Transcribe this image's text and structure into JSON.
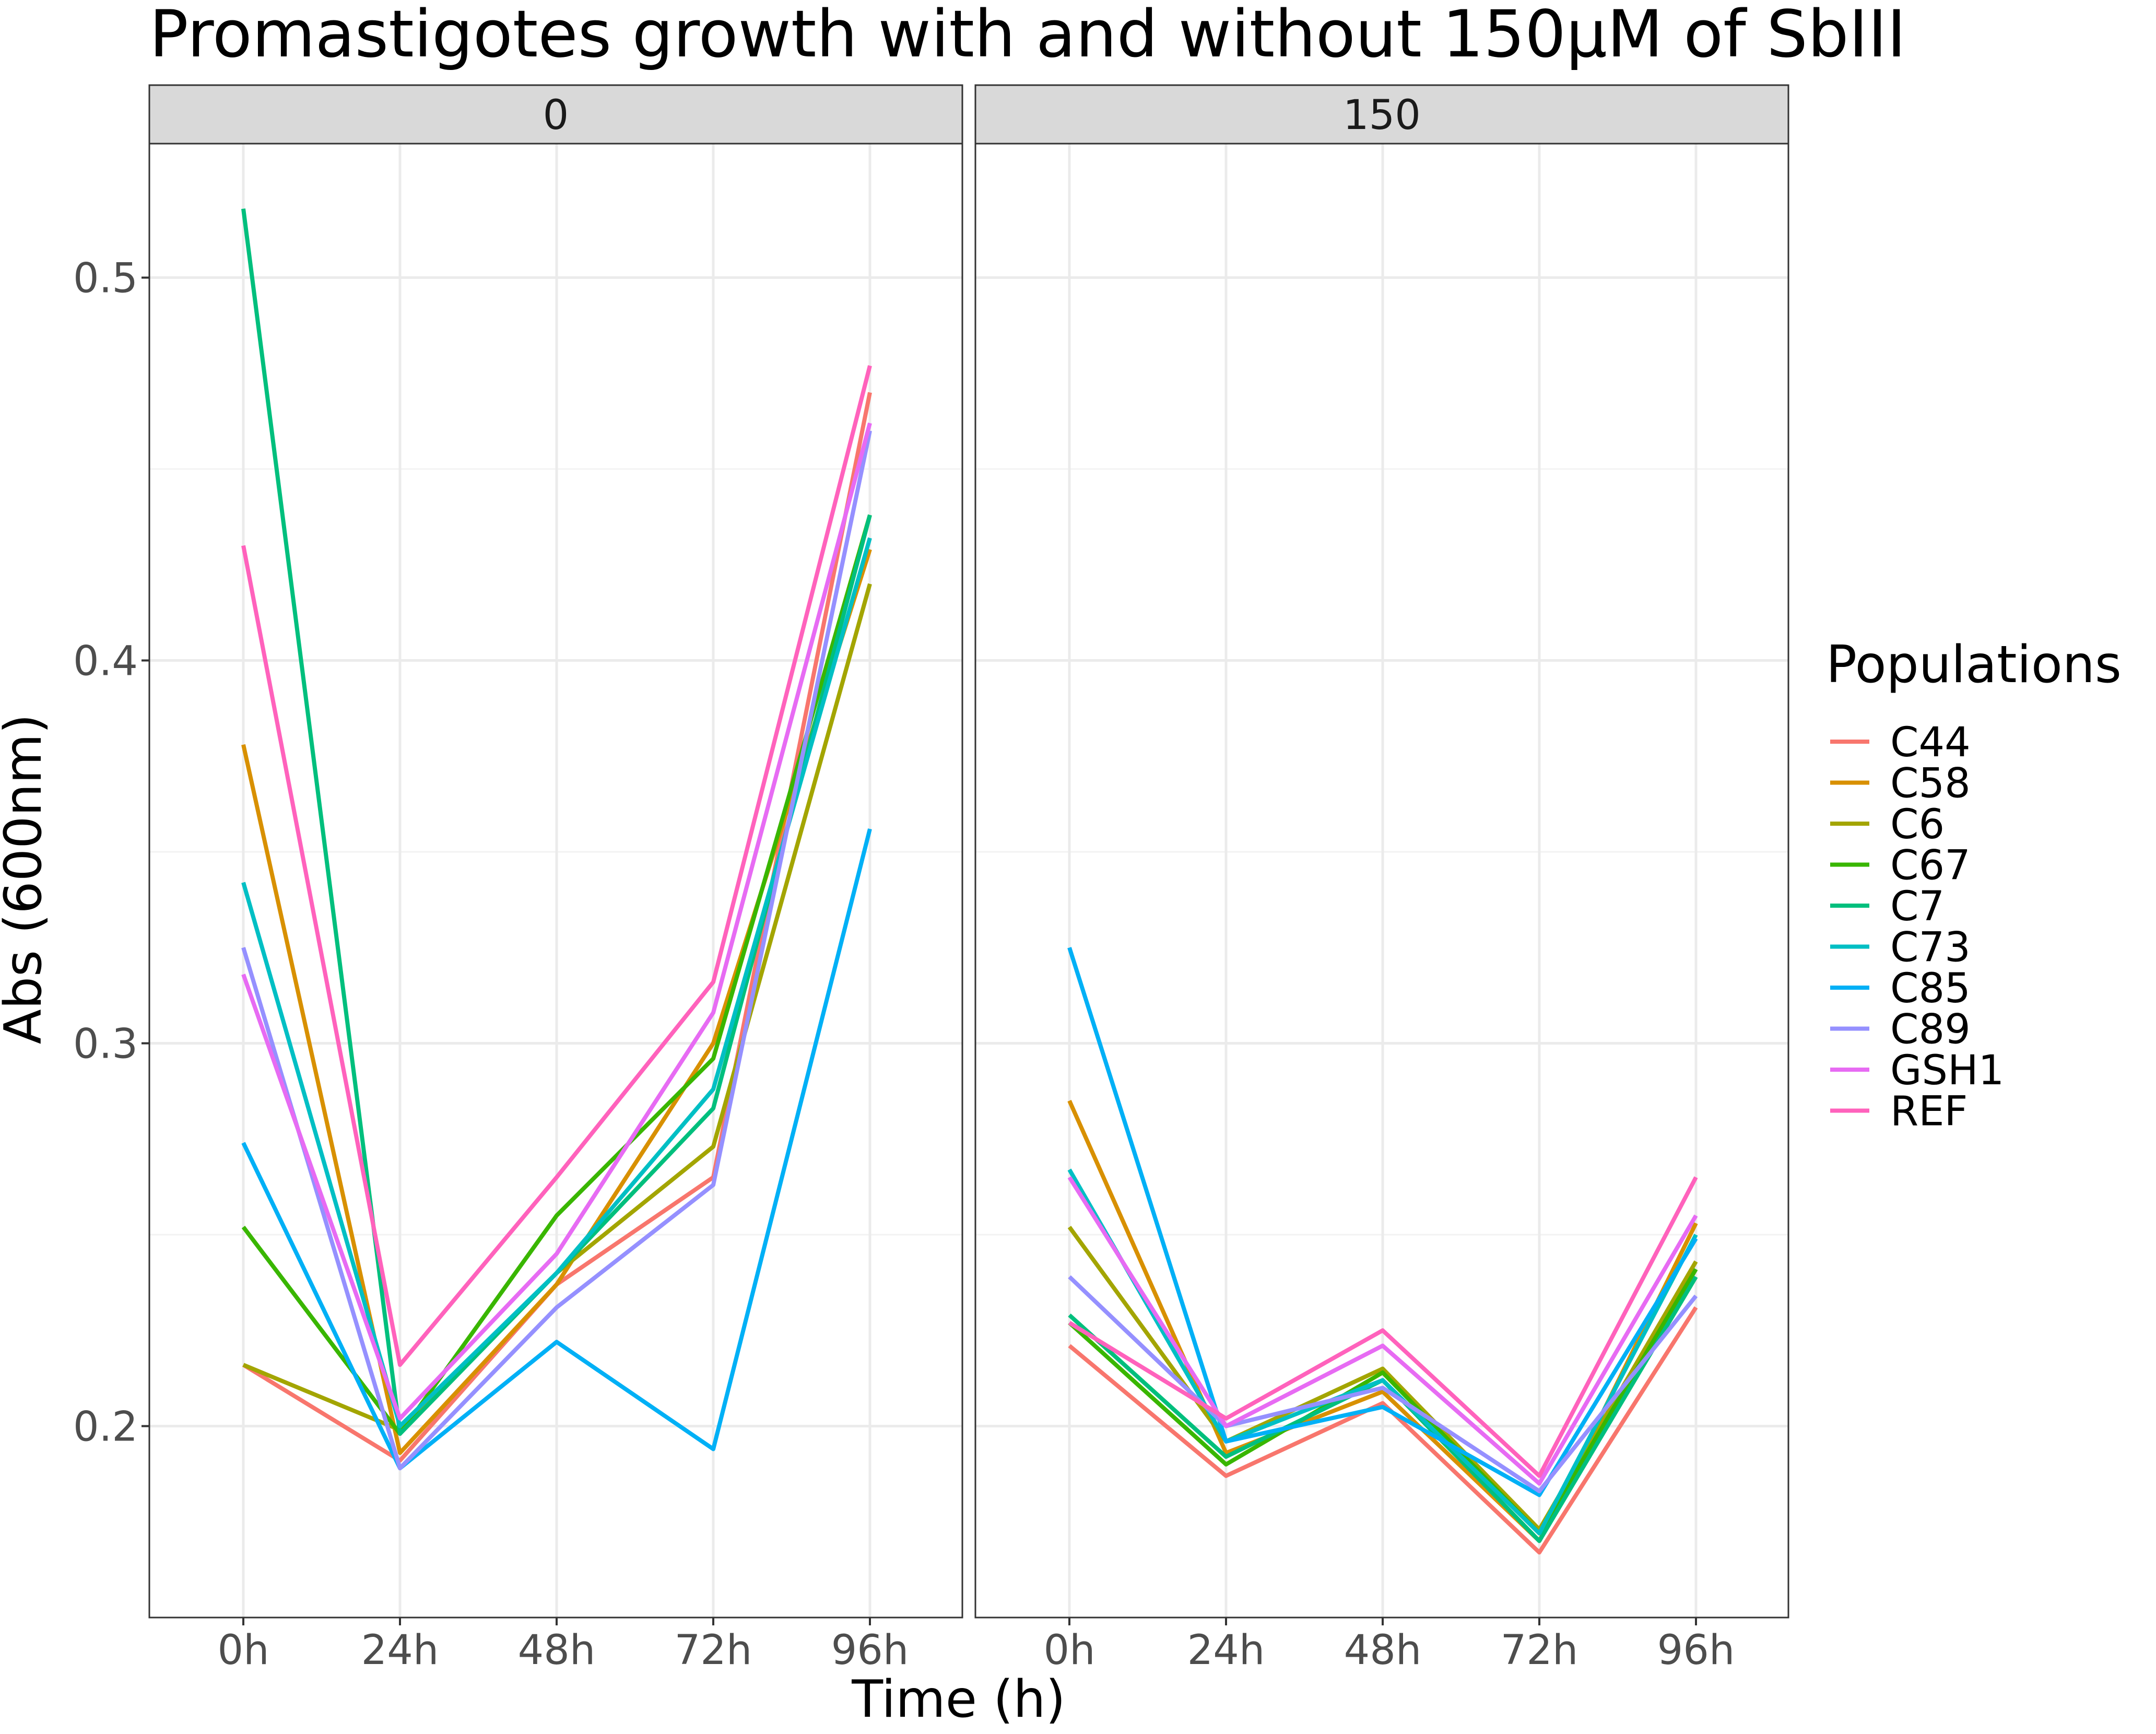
{
  "chart_data": {
    "type": "line",
    "title": "Promastigotes growth with and without 150µM of SbIII",
    "xlabel": "Time (h)",
    "ylabel": "Abs (600nm)",
    "ylim": [
      0.15,
      0.535
    ],
    "y_ticks": [
      "0.2",
      "0.3",
      "0.4",
      "0.5"
    ],
    "categories": [
      "0h",
      "24h",
      "48h",
      "72h",
      "96h"
    ],
    "grid": true,
    "legend": {
      "title": "Populations",
      "position": "right"
    },
    "facets": [
      {
        "label": "0",
        "series": [
          {
            "name": "C44",
            "color": "#F8766D",
            "values": [
              0.216,
              0.191,
              0.237,
              0.265,
              0.47
            ]
          },
          {
            "name": "C58",
            "color": "#D89000",
            "values": [
              0.378,
              0.193,
              0.237,
              0.3,
              0.429
            ]
          },
          {
            "name": "C6",
            "color": "#A3A500",
            "values": [
              0.216,
              0.199,
              0.24,
              0.273,
              0.42
            ]
          },
          {
            "name": "C67",
            "color": "#39B600",
            "values": [
              0.252,
              0.198,
              0.255,
              0.296,
              0.438
            ]
          },
          {
            "name": "C7",
            "color": "#00BF7D",
            "values": [
              0.518,
              0.198,
              0.24,
              0.283,
              0.438
            ]
          },
          {
            "name": "C73",
            "color": "#00BFC4",
            "values": [
              0.342,
              0.2,
              0.24,
              0.288,
              0.432
            ]
          },
          {
            "name": "C85",
            "color": "#00B0F6",
            "values": [
              0.274,
              0.189,
              0.222,
              0.194,
              0.356
            ]
          },
          {
            "name": "C89",
            "color": "#9590FF",
            "values": [
              0.325,
              0.189,
              0.231,
              0.263,
              0.46
            ]
          },
          {
            "name": "GSH1",
            "color": "#E76BF3",
            "values": [
              0.318,
              0.202,
              0.245,
              0.308,
              0.462
            ]
          },
          {
            "name": "REF",
            "color": "#FF62BC",
            "values": [
              0.43,
              0.216,
              0.265,
              0.316,
              0.477
            ]
          }
        ]
      },
      {
        "label": "150",
        "series": [
          {
            "name": "C44",
            "color": "#F8766D",
            "values": [
              0.221,
              0.187,
              0.206,
              0.167,
              0.231
            ]
          },
          {
            "name": "C58",
            "color": "#D89000",
            "values": [
              0.285,
              0.193,
              0.209,
              0.17,
              0.253
            ]
          },
          {
            "name": "C6",
            "color": "#A3A500",
            "values": [
              0.252,
              0.196,
              0.215,
              0.173,
              0.243
            ]
          },
          {
            "name": "C67",
            "color": "#39B600",
            "values": [
              0.227,
              0.19,
              0.214,
              0.172,
              0.241
            ]
          },
          {
            "name": "C7",
            "color": "#00BF7D",
            "values": [
              0.229,
              0.192,
              0.212,
              0.17,
              0.239
            ]
          },
          {
            "name": "C73",
            "color": "#00BFC4",
            "values": [
              0.267,
              0.196,
              0.212,
              0.172,
              0.25
            ]
          },
          {
            "name": "C85",
            "color": "#00B0F6",
            "values": [
              0.325,
              0.196,
              0.205,
              0.182,
              0.249
            ]
          },
          {
            "name": "C89",
            "color": "#9590FF",
            "values": [
              0.239,
              0.2,
              0.21,
              0.183,
              0.234
            ]
          },
          {
            "name": "GSH1",
            "color": "#E76BF3",
            "values": [
              0.265,
              0.2,
              0.221,
              0.185,
              0.255
            ]
          },
          {
            "name": "REF",
            "color": "#FF62BC",
            "values": [
              0.227,
              0.202,
              0.225,
              0.187,
              0.265
            ]
          }
        ]
      }
    ]
  }
}
